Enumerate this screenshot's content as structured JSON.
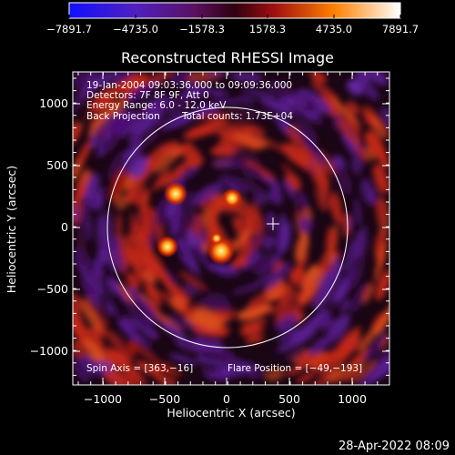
{
  "colorbar": {
    "tick_labels": [
      "−7891.7",
      "−4735.0",
      "−1578.3",
      "1578.3",
      "4735.0",
      "7891.7"
    ],
    "colors": [
      "#1a1aff",
      "#6a1fb0",
      "#5a1050",
      "#b01010",
      "#ff7a00",
      "#ffffff"
    ]
  },
  "title": "Reconstructed RHESSI Image",
  "info": {
    "line1": "19-Jan-2004 09:03:36.000 to 09:09:36.000",
    "line2": "Detectors: 7F 8F 9F, Att 0",
    "line3": "Energy Range: 6.0 - 12.0 keV",
    "line4_a": "Back Projection",
    "line4_b": "Total counts: 1.73E+04"
  },
  "footer_left": "Spin Axis = [363,−16]",
  "footer_right": "Flare Position = [−49,−193]",
  "xlabel": "Heliocentric X (arcsec)",
  "ylabel": "Heliocentric Y (arcsec)",
  "x_ticks": [
    "−1000",
    "−500",
    "0",
    "500",
    "1000"
  ],
  "y_ticks": [
    "1000",
    "500",
    "0",
    "−500",
    "−1000"
  ],
  "timestamp": "28-Apr-2022 08:09"
}
